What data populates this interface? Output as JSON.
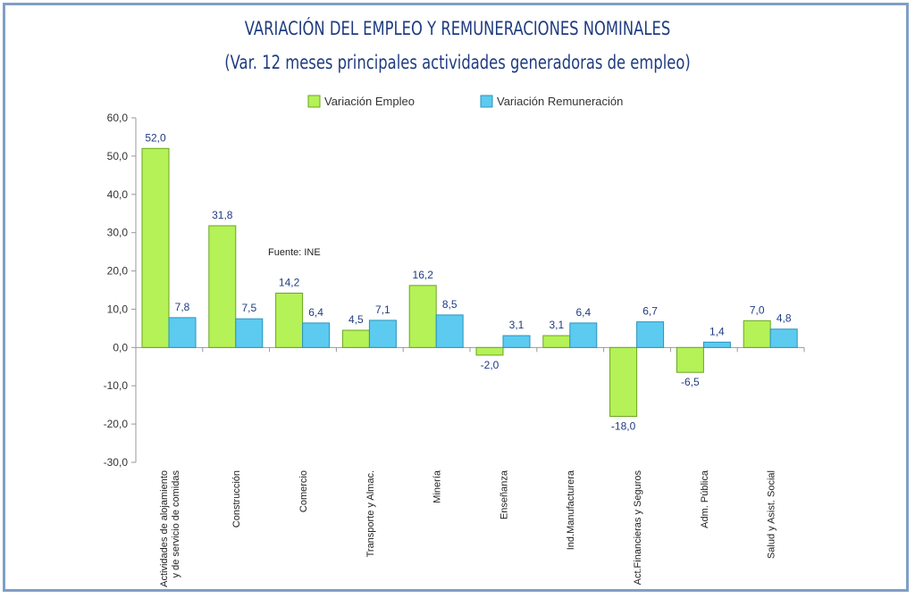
{
  "chart_data": {
    "type": "bar",
    "title": "VARIACIÓN DEL EMPLEO Y REMUNERACIONES NOMINALES",
    "subtitle": "(Var. 12 meses principales actividades generadoras de empleo)",
    "note": "Fuente: INE",
    "categories": [
      [
        "Actividades de alojamiento",
        "y de servicio de comidas"
      ],
      [
        "Construcción"
      ],
      [
        "Comercio"
      ],
      [
        "Transporte y Almac."
      ],
      [
        "Minería"
      ],
      [
        "Enseñanza"
      ],
      [
        "Ind.Manufacturera"
      ],
      [
        "Act.Financieras y Seguros"
      ],
      [
        "Adm. Pública"
      ],
      [
        "Salud y Asist. Social"
      ]
    ],
    "series": [
      {
        "name": "Variación Empleo",
        "color": "#b4f257",
        "stroke": "#6aa51f",
        "values": [
          52.0,
          31.8,
          14.2,
          4.5,
          16.2,
          -2.0,
          3.1,
          -18.0,
          -6.5,
          7.0
        ],
        "labels": [
          "52,0",
          "31,8",
          "14,2",
          "4,5",
          "16,2",
          "-2,0",
          "3,1",
          "-18,0",
          "-6,5",
          "7,0"
        ]
      },
      {
        "name": "Variación Remuneración",
        "color": "#5ccbef",
        "stroke": "#2a93bf",
        "values": [
          7.8,
          7.5,
          6.4,
          7.1,
          8.5,
          3.1,
          6.4,
          6.7,
          1.4,
          4.8
        ],
        "labels": [
          "7,8",
          "7,5",
          "6,4",
          "7,1",
          "8,5",
          "3,1",
          "6,4",
          "6,7",
          "1,4",
          "4,8"
        ]
      }
    ],
    "ylim": [
      -30,
      60
    ],
    "yticks": [
      60,
      50,
      40,
      30,
      20,
      10,
      0,
      -10,
      -20,
      -30
    ],
    "ytick_labels": [
      "60,0",
      "50,0",
      "40,0",
      "30,0",
      "20,0",
      "10,0",
      "0,0",
      "-10,0",
      "-20,0",
      "-30,0"
    ],
    "legend_position": "top",
    "grid": false
  }
}
